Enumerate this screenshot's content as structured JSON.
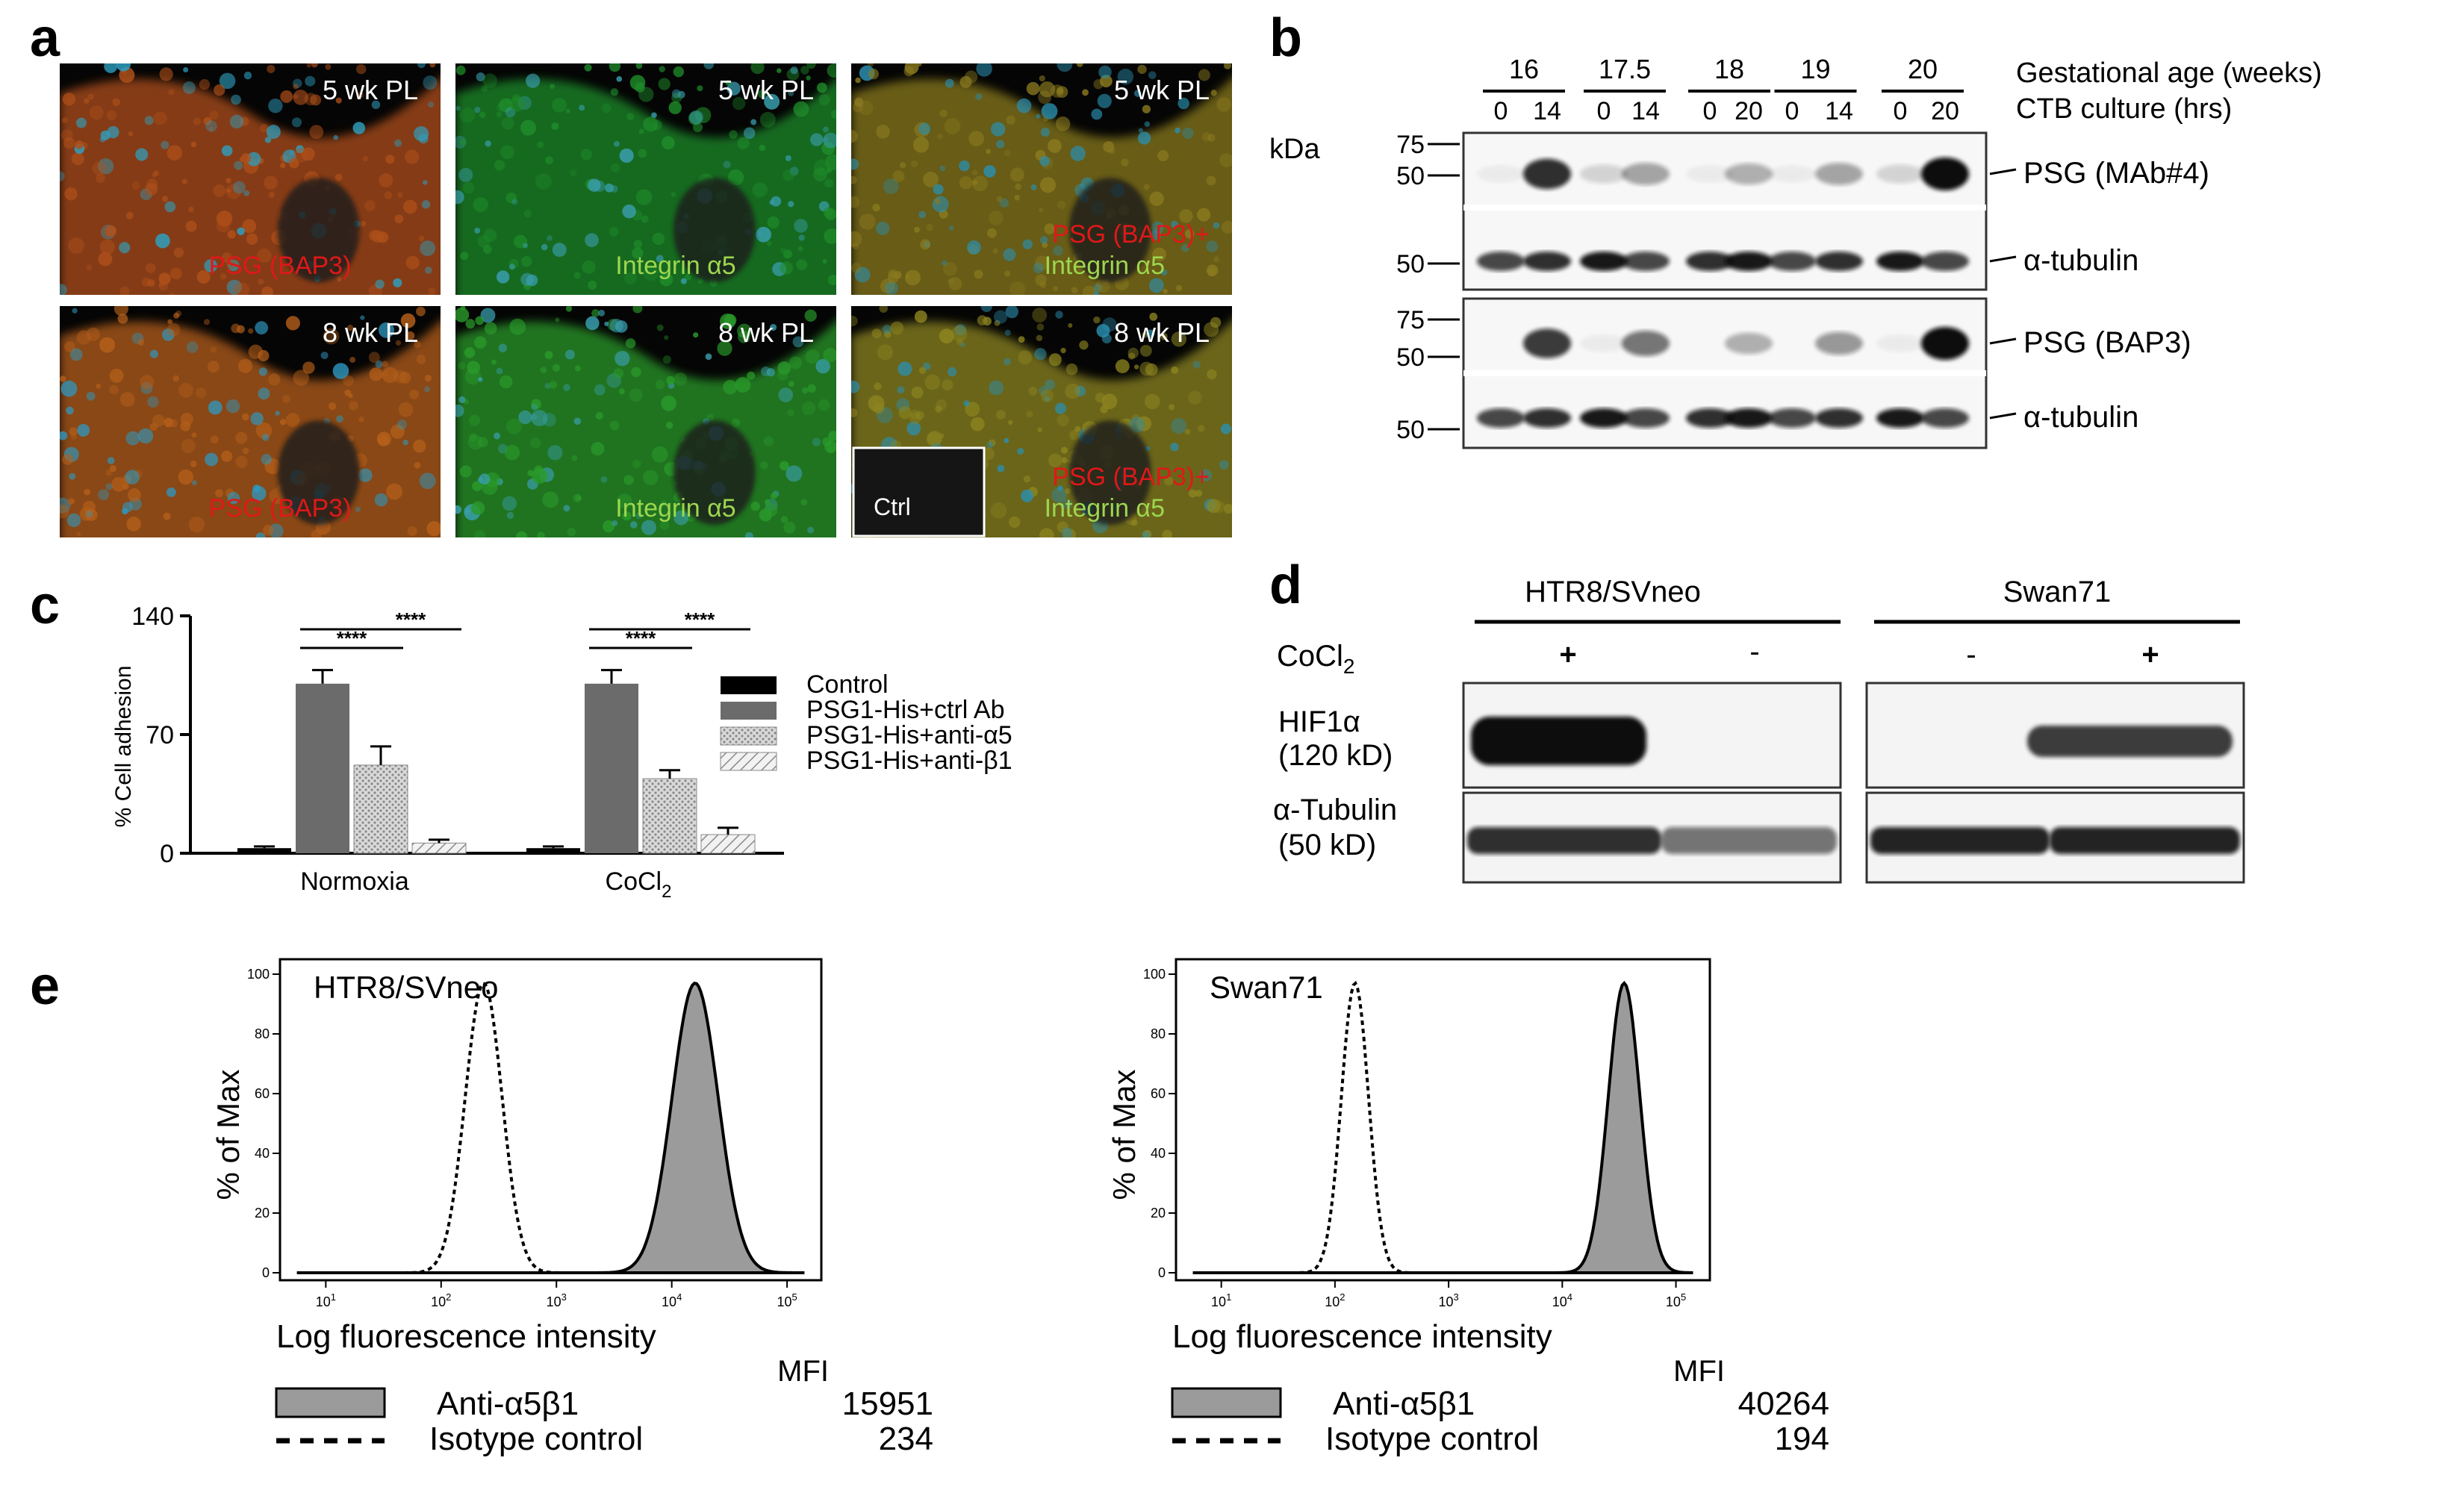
{
  "panel_letters": {
    "a": "a",
    "b": "b",
    "c": "c",
    "d": "d",
    "e": "e"
  },
  "panel_a": {
    "tiles": [
      {
        "title": "5 wk PL",
        "stain": "PSG (BAP3)",
        "stain_color": "#e01818",
        "base": "#b0501a",
        "overlay": "#2ea0c0"
      },
      {
        "title": "5 wk PL",
        "stain": "Integrin α5",
        "stain_color": "#9ed650",
        "base": "#1f8c2a",
        "overlay": "#3a9fb0"
      },
      {
        "title": "5 wk PL",
        "stain": "PSG (BAP3)+",
        "stain2": "Integrin α5",
        "stain_color": "#e01818",
        "stain2_color": "#9ed650",
        "base": "#8a7a1f",
        "overlay": "#2a8fb0"
      },
      {
        "title": "8 wk PL",
        "stain": "PSG (BAP3)",
        "stain_color": "#e01818",
        "base": "#b55f1a",
        "overlay": "#2e98c0"
      },
      {
        "title": "8 wk PL",
        "stain": "Integrin α5",
        "stain_color": "#9ed650",
        "base": "#2a9a2a",
        "overlay": "#3aa0b0"
      },
      {
        "title": "8 wk PL",
        "stain": "PSG (BAP3)+",
        "stain2": "Integrin α5",
        "stain_color": "#e01818",
        "stain2_color": "#9ed650",
        "base": "#8d8520",
        "overlay": "#2a8fb0",
        "inset": "Ctrl"
      }
    ]
  },
  "panel_b": {
    "gestational_label": "Gestational age (weeks)",
    "culture_label": "CTB culture (hrs)",
    "kda_label": "kDa",
    "groups": [
      {
        "age": "16",
        "hours": [
          "0",
          "14"
        ]
      },
      {
        "age": "17.5",
        "hours": [
          "0",
          "14"
        ]
      },
      {
        "age": "18",
        "hours": [
          "0",
          "20"
        ]
      },
      {
        "age": "19",
        "hours": [
          "0",
          "14"
        ]
      },
      {
        "age": "20",
        "hours": [
          "0",
          "20"
        ]
      }
    ],
    "blots": [
      {
        "label": "PSG (MAb#4)",
        "markers": [
          "75",
          "50"
        ]
      },
      {
        "label": "α-tubulin",
        "markers": [
          "50"
        ]
      },
      {
        "label": "PSG (BAP3)",
        "markers": [
          "75",
          "50"
        ]
      },
      {
        "label": "α-tubulin",
        "markers": [
          "50"
        ]
      }
    ]
  },
  "chart_data": {
    "type": "bar",
    "categories": [
      "Normoxia",
      "CoCl2"
    ],
    "series": [
      {
        "name": "Control",
        "values": [
          3,
          3
        ]
      },
      {
        "name": "PSG1-His+ctrl Ab",
        "values": [
          100,
          100
        ]
      },
      {
        "name": "PSG1-His+anti-α5",
        "values": [
          52,
          44
        ]
      },
      {
        "name": "PSG1-His+anti-β1",
        "values": [
          6,
          11
        ]
      }
    ],
    "errors": [
      [
        1,
        1
      ],
      [
        8,
        8
      ],
      [
        11,
        5
      ],
      [
        2,
        4
      ]
    ],
    "ylabel": "% Cell adhesion",
    "ylim": [
      0,
      140
    ],
    "yticks": [
      "0",
      "70",
      "140"
    ],
    "category_labels": {
      "normoxia": "Normoxia",
      "cocl_main": "CoCl",
      "cocl_sub": "2"
    },
    "significance": "****",
    "legend_position": "right",
    "colors": [
      "#000000",
      "#6a6a6a",
      "#bdbdbd",
      "#e8e8e8"
    ]
  },
  "panel_d": {
    "cell_lines": [
      "HTR8/SVneo",
      "Swan71"
    ],
    "treatment_main": "CoCl",
    "treatment_sub": "2",
    "signs": [
      "+",
      "-",
      "-",
      "+"
    ],
    "hif_label": "HIF1α",
    "hif_kd": "(120 kD)",
    "tub_label": "α-Tubulin",
    "tub_kd": "(50 kD)"
  },
  "panel_e": [
    {
      "title": "HTR8/SVneo",
      "ylabel": "% of Max",
      "xlabel": "Log fluorescence  intensity",
      "yticks": [
        "0",
        "20",
        "40",
        "60",
        "80",
        "100"
      ],
      "xticks": [
        "10",
        "10",
        "10",
        "10",
        "10"
      ],
      "xexp": [
        "1",
        "2",
        "3",
        "4",
        "5"
      ],
      "mfi_header": "MFI",
      "legend": [
        {
          "name": "Anti-α5β1",
          "mfi": "15951"
        },
        {
          "name": "Isotype control",
          "mfi": "234"
        }
      ],
      "isotype_peak": 234,
      "anti_peak": 15951,
      "isotype_width": 0.16,
      "anti_width": 0.2
    },
    {
      "title": "Swan71",
      "ylabel": "% of Max",
      "xlabel": "Log fluorescence  intensity",
      "yticks": [
        "0",
        "20",
        "40",
        "60",
        "80",
        "100"
      ],
      "xticks": [
        "10",
        "10",
        "10",
        "10",
        "10"
      ],
      "xexp": [
        "1",
        "2",
        "3",
        "4",
        "5"
      ],
      "mfi_header": "MFI",
      "legend": [
        {
          "name": "Anti-α5β1",
          "mfi": "40264"
        },
        {
          "name": "Isotype control",
          "mfi": "194"
        }
      ],
      "isotype_peak": 150,
      "anti_peak": 35000,
      "isotype_width": 0.12,
      "anti_width": 0.14
    }
  ]
}
